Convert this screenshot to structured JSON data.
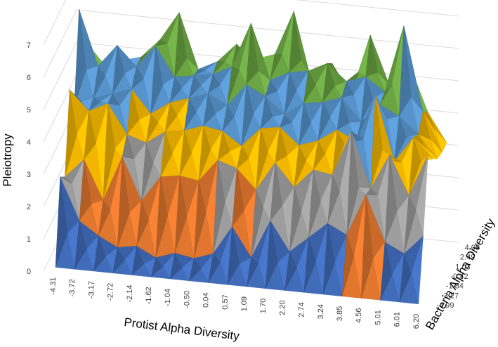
{
  "chart_data": {
    "type": "surface",
    "title": "",
    "xlabel": "Protist Alpha Diversity",
    "ylabel": "Bacteria Alpha Diversity",
    "zlabel": "Pleiotropy",
    "x_ticks": [
      "-4.31",
      "-3.72",
      "-3.17",
      "-2.72",
      "-2.14",
      "-1.62",
      "-1.04",
      "-0.50",
      "0.04",
      "0.57",
      "1.09",
      "1.70",
      "2.20",
      "2.74",
      "3.24",
      "3.85",
      "4.56",
      "5.01",
      "6.01",
      "6.20"
    ],
    "y_ticks": [
      "-4.99",
      "-3.27",
      "-1.84",
      "-0.42",
      "1.03",
      "2.49",
      "4.09"
    ],
    "z_ticks": [
      "0",
      "1",
      "2",
      "3",
      "4",
      "5",
      "6",
      "7"
    ],
    "zlim": [
      0,
      7
    ],
    "grid": true,
    "color_bands": [
      {
        "range": [
          0,
          1
        ],
        "color": "#4472C4"
      },
      {
        "range": [
          1,
          2
        ],
        "color": "#ED7D31"
      },
      {
        "range": [
          2,
          3
        ],
        "color": "#A5A5A5"
      },
      {
        "range": [
          3,
          4
        ],
        "color": "#FFC000"
      },
      {
        "range": [
          4,
          5
        ],
        "color": "#5B9BD5"
      },
      {
        "range": [
          5,
          6
        ],
        "color": "#70AD47"
      },
      {
        "range": [
          6,
          7
        ],
        "color": "#264478"
      }
    ],
    "z": [
      [
        0,
        0,
        0,
        0,
        0,
        0,
        0,
        0,
        0,
        0,
        0,
        0,
        0,
        0,
        0,
        0,
        0,
        0,
        0,
        0
      ],
      [
        2.5,
        1.2,
        0.8,
        0.5,
        0.6,
        0.3,
        0.5,
        0.4,
        0.6,
        1.5,
        0.6,
        1.8,
        0.9,
        1.4,
        1.9,
        1.6,
        2.9,
        1.5,
        1.2,
        1.8
      ],
      [
        2.2,
        2.8,
        1.6,
        3.0,
        1.7,
        2.5,
        2.6,
        2.5,
        3.2,
        3.0,
        2.4,
        3.3,
        2.6,
        3.2,
        3.1,
        4.5,
        2.8,
        3.9,
        2.7,
        4.0
      ],
      [
        4.6,
        4.0,
        4.3,
        3.4,
        3.2,
        3.6,
        3.7,
        3.9,
        3.8,
        3.4,
        4.0,
        4.1,
        3.6,
        3.8,
        4.2,
        3.9,
        5.4,
        3.4,
        4.2,
        3.6
      ],
      [
        3.8,
        4.1,
        4.3,
        4.5,
        3.8,
        4.2,
        4.4,
        4.6,
        4.3,
        5.0,
        4.7,
        4.2,
        4.6,
        4.7,
        4.9,
        4.2,
        4.8,
        4.5,
        4.0,
        3.3
      ],
      [
        6.5,
        4.8,
        5.5,
        4.9,
        5.6,
        4.7,
        4.8,
        4.9,
        5.2,
        6.6,
        4.9,
        5.2,
        5.3,
        5.6,
        5.1,
        5.3,
        4.9,
        7.0,
        4.4,
        3.2
      ],
      [
        4.8,
        4.6,
        4.5,
        4.9,
        5.5,
        6.4,
        4.7,
        5.0,
        5.6,
        4.8,
        5.4,
        6.8,
        4.5,
        5.3,
        4.4,
        6.3,
        4.8,
        5.2,
        4.1,
        3.2
      ]
    ]
  }
}
